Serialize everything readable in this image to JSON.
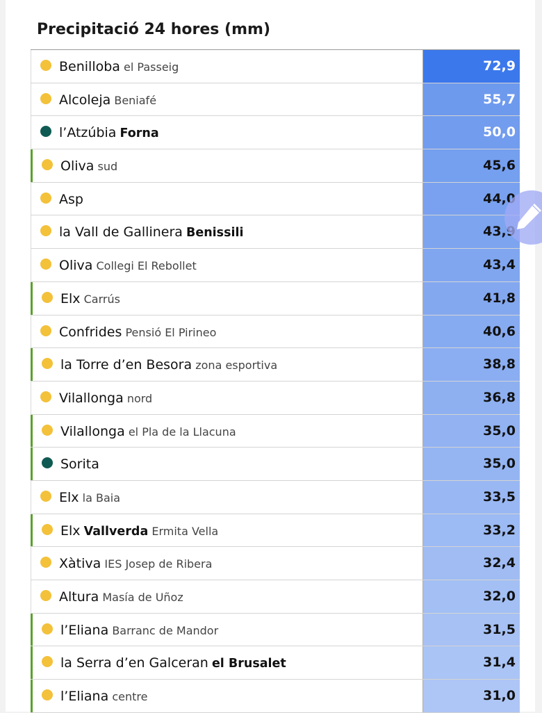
{
  "title": "Precipitació 24 hores (mm)",
  "colors": {
    "dot_yellow": "#f3c13a",
    "dot_teal": "#0f5b54",
    "marker_green": "#5aa02c",
    "bar_top": "#3b78ec",
    "bar_light": "#aec6f5"
  },
  "icons": {
    "floating_button": "pencil-edit-icon"
  },
  "rows": [
    {
      "main": "Benilloba",
      "sub": "el Passeig",
      "bold": "",
      "sub2": "",
      "value": "72,9",
      "dot": "yellow",
      "marked": false
    },
    {
      "main": "Alcoleja",
      "sub": "Beniafé",
      "bold": "",
      "sub2": "",
      "value": "55,7",
      "dot": "yellow",
      "marked": false
    },
    {
      "main": "l’Atzúbia",
      "sub": "",
      "bold": "Forna",
      "sub2": "",
      "value": "50,0",
      "dot": "teal",
      "marked": false
    },
    {
      "main": "Oliva",
      "sub": "sud",
      "bold": "",
      "sub2": "",
      "value": "45,6",
      "dot": "yellow",
      "marked": true
    },
    {
      "main": "Asp",
      "sub": "",
      "bold": "",
      "sub2": "",
      "value": "44,0",
      "dot": "yellow",
      "marked": false
    },
    {
      "main": "la Vall de Gallinera",
      "sub": "",
      "bold": "Benissili",
      "sub2": "",
      "value": "43,9",
      "dot": "yellow",
      "marked": false
    },
    {
      "main": "Oliva",
      "sub": "Collegi El Rebollet",
      "bold": "",
      "sub2": "",
      "value": "43,4",
      "dot": "yellow",
      "marked": false
    },
    {
      "main": "Elx",
      "sub": "Carrús",
      "bold": "",
      "sub2": "",
      "value": "41,8",
      "dot": "yellow",
      "marked": true
    },
    {
      "main": "Confrides",
      "sub": "Pensió El Pirineo",
      "bold": "",
      "sub2": "",
      "value": "40,6",
      "dot": "yellow",
      "marked": false
    },
    {
      "main": "la Torre d’en Besora",
      "sub": "zona esportiva",
      "bold": "",
      "sub2": "",
      "value": "38,8",
      "dot": "yellow",
      "marked": true
    },
    {
      "main": "Vilallonga",
      "sub": "nord",
      "bold": "",
      "sub2": "",
      "value": "36,8",
      "dot": "yellow",
      "marked": false
    },
    {
      "main": "Vilallonga",
      "sub": "el Pla de la Llacuna",
      "bold": "",
      "sub2": "",
      "value": "35,0",
      "dot": "yellow",
      "marked": true
    },
    {
      "main": "Sorita",
      "sub": "",
      "bold": "",
      "sub2": "",
      "value": "35,0",
      "dot": "teal",
      "marked": true
    },
    {
      "main": "Elx",
      "sub": "la Baia",
      "bold": "",
      "sub2": "",
      "value": "33,5",
      "dot": "yellow",
      "marked": false
    },
    {
      "main": "Elx",
      "sub": "",
      "bold": "Vallverda",
      "sub2": "Ermita Vella",
      "value": "33,2",
      "dot": "yellow",
      "marked": true
    },
    {
      "main": "Xàtiva",
      "sub": "IES Josep de Ribera",
      "bold": "",
      "sub2": "",
      "value": "32,4",
      "dot": "yellow",
      "marked": false
    },
    {
      "main": "Altura",
      "sub": "Masía de Uñoz",
      "bold": "",
      "sub2": "",
      "value": "32,0",
      "dot": "yellow",
      "marked": false
    },
    {
      "main": "l’Eliana",
      "sub": "Barranc de Mandor",
      "bold": "",
      "sub2": "",
      "value": "31,5",
      "dot": "yellow",
      "marked": true
    },
    {
      "main": "la Serra d’en Galceran",
      "sub": "",
      "bold": "el Brusalet",
      "sub2": "",
      "value": "31,4",
      "dot": "yellow",
      "marked": true
    },
    {
      "main": "l’Eliana",
      "sub": "centre",
      "bold": "",
      "sub2": "",
      "value": "31,0",
      "dot": "yellow",
      "marked": true
    }
  ]
}
